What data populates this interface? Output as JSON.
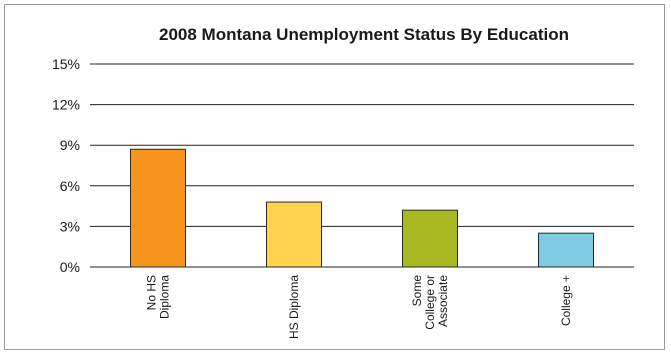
{
  "chart_data": {
    "type": "bar",
    "title": "2008 Montana Unemployment Status By Education",
    "xlabel": "",
    "ylabel": "",
    "categories": [
      [
        "No HS",
        "Diploma"
      ],
      [
        "HS Diploma"
      ],
      [
        "Some",
        "College or",
        "Associate"
      ],
      [
        "College +"
      ]
    ],
    "values": [
      8.7,
      4.8,
      4.2,
      2.5
    ],
    "colors": [
      "#f7941d",
      "#ffd34e",
      "#a8b820",
      "#7fcbe1"
    ],
    "ylim": [
      0,
      15
    ],
    "yticks": [
      0,
      3,
      6,
      9,
      12,
      15
    ],
    "ytick_labels": [
      "0%",
      "3%",
      "6%",
      "9%",
      "12%",
      "15%"
    ],
    "grid": true,
    "legend": "none"
  }
}
